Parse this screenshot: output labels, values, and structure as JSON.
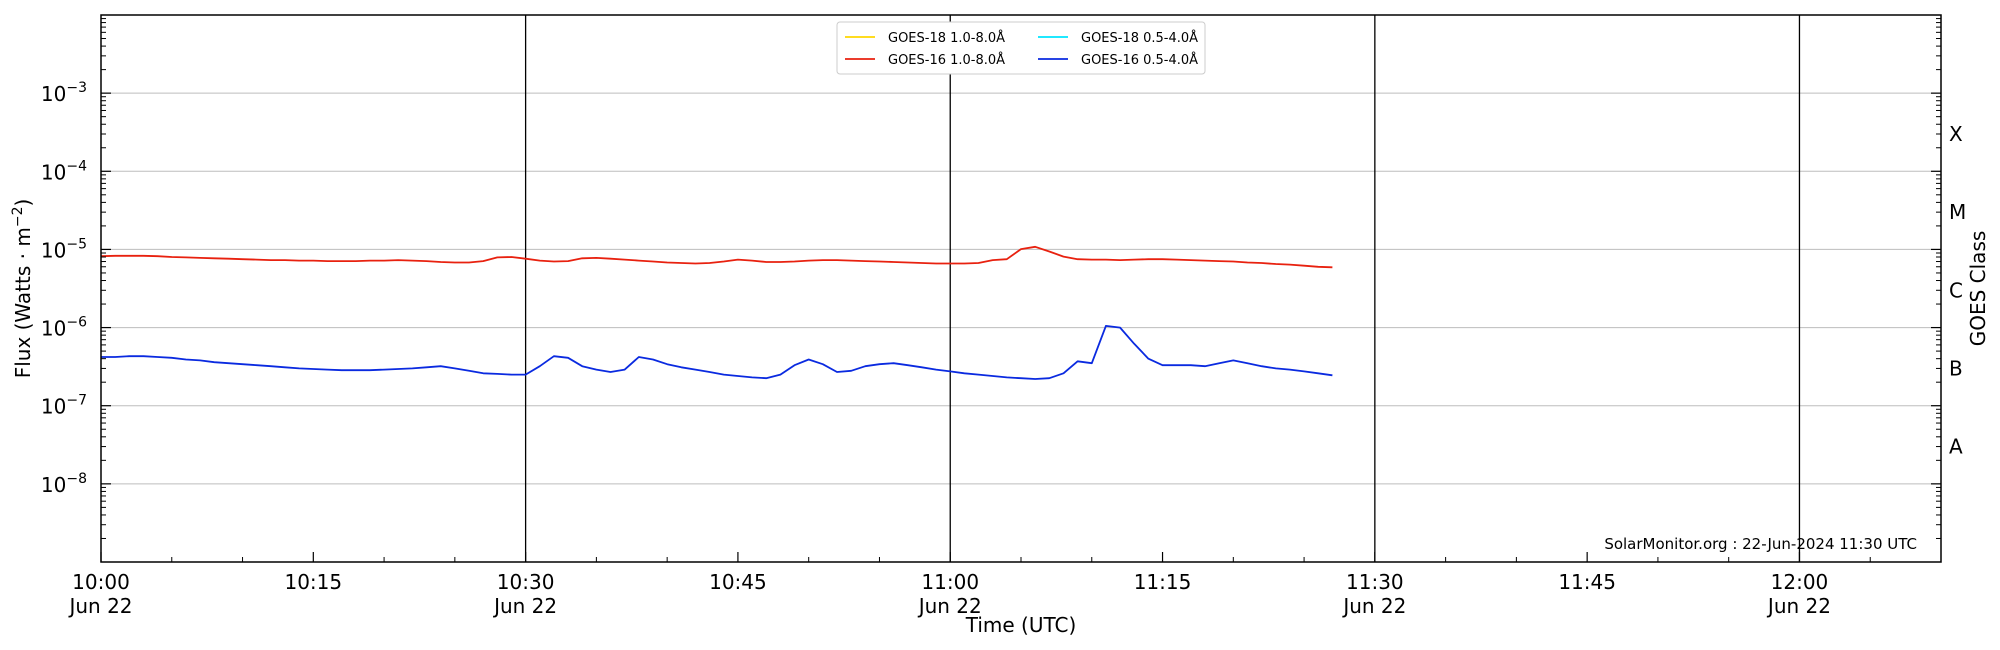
{
  "chart_data": {
    "type": "line",
    "title": "",
    "xlabel": "Time (UTC)",
    "ylabel": "Flux (Watts · m",
    "ylabel_superscript": "−2",
    "ylabel_suffix": ")",
    "right_ylabel": "GOES Class",
    "y_scale": "log",
    "ylim": [
      1e-09,
      0.01
    ],
    "xlim": [
      "10:00",
      "12:10"
    ],
    "grid": "horizontal",
    "legend_position": "top-center",
    "credit": "SolarMonitor.org : 22-Jun-2024 11:30 UTC",
    "y_ticks": [
      {
        "value": 1e-08,
        "base": "10",
        "exp": "−8"
      },
      {
        "value": 1e-07,
        "base": "10",
        "exp": "−7"
      },
      {
        "value": 1e-06,
        "base": "10",
        "exp": "−6"
      },
      {
        "value": 1e-05,
        "base": "10",
        "exp": "−5"
      },
      {
        "value": 0.0001,
        "base": "10",
        "exp": "−4"
      },
      {
        "value": 0.001,
        "base": "10",
        "exp": "−3"
      }
    ],
    "x_ticks": [
      {
        "minute": 0,
        "label": "10:00",
        "date": "Jun 22"
      },
      {
        "minute": 15,
        "label": "10:15",
        "date": ""
      },
      {
        "minute": 30,
        "label": "10:30",
        "date": "Jun 22"
      },
      {
        "minute": 45,
        "label": "10:45",
        "date": ""
      },
      {
        "minute": 60,
        "label": "11:00",
        "date": "Jun 22"
      },
      {
        "minute": 75,
        "label": "11:15",
        "date": ""
      },
      {
        "minute": 90,
        "label": "11:30",
        "date": "Jun 22"
      },
      {
        "minute": 105,
        "label": "11:45",
        "date": ""
      },
      {
        "minute": 120,
        "label": "12:00",
        "date": "Jun 22"
      }
    ],
    "vertical_markers": [
      30,
      60,
      90,
      120
    ],
    "goes_classes": [
      {
        "label": "A",
        "flux": 3e-08
      },
      {
        "label": "B",
        "flux": 3e-07
      },
      {
        "label": "C",
        "flux": 3e-06
      },
      {
        "label": "M",
        "flux": 3e-05
      },
      {
        "label": "X",
        "flux": 0.0003
      }
    ],
    "x_minutes": [
      0,
      1,
      2,
      3,
      4,
      5,
      6,
      7,
      8,
      9,
      10,
      11,
      12,
      13,
      14,
      15,
      16,
      17,
      18,
      19,
      20,
      21,
      22,
      23,
      24,
      25,
      26,
      27,
      28,
      29,
      30,
      31,
      32,
      33,
      34,
      35,
      36,
      37,
      38,
      39,
      40,
      41,
      42,
      43,
      44,
      45,
      46,
      47,
      48,
      49,
      50,
      51,
      52,
      53,
      54,
      55,
      56,
      57,
      58,
      59,
      60,
      61,
      62,
      63,
      64,
      65,
      66,
      67,
      68,
      69,
      70,
      71,
      72,
      73,
      74,
      75,
      76,
      77,
      78,
      79,
      80,
      81,
      82,
      83,
      84,
      85,
      86,
      87
    ],
    "series": [
      {
        "name": "GOES-18 1.0-8.0Å",
        "color": "#ffd700",
        "values": []
      },
      {
        "name": "GOES-18 0.5-4.0Å",
        "color": "#00e5ff",
        "values": []
      },
      {
        "name": "GOES-16 1.0-8.0Å",
        "color": "#e8210f",
        "values": [
          8.2e-06,
          8.3e-06,
          8.3e-06,
          8.3e-06,
          8.2e-06,
          8e-06,
          7.9e-06,
          7.8e-06,
          7.7e-06,
          7.6e-06,
          7.5e-06,
          7.4e-06,
          7.3e-06,
          7.3e-06,
          7.2e-06,
          7.2e-06,
          7.1e-06,
          7.1e-06,
          7.1e-06,
          7.2e-06,
          7.2e-06,
          7.3e-06,
          7.2e-06,
          7.1e-06,
          6.9e-06,
          6.8e-06,
          6.8e-06,
          7.1e-06,
          7.9e-06,
          8e-06,
          7.6e-06,
          7.2e-06,
          7e-06,
          7.1e-06,
          7.7e-06,
          7.8e-06,
          7.6e-06,
          7.4e-06,
          7.2e-06,
          7e-06,
          6.8e-06,
          6.7e-06,
          6.6e-06,
          6.7e-06,
          7e-06,
          7.4e-06,
          7.2e-06,
          6.9e-06,
          6.9e-06,
          7e-06,
          7.2e-06,
          7.3e-06,
          7.3e-06,
          7.2e-06,
          7.1e-06,
          7e-06,
          6.9e-06,
          6.8e-06,
          6.7e-06,
          6.6e-06,
          6.6e-06,
          6.6e-06,
          6.7e-06,
          7.3e-06,
          7.5e-06,
          1.01e-05,
          1.08e-05,
          9.4e-06,
          8.1e-06,
          7.5e-06,
          7.4e-06,
          7.4e-06,
          7.3e-06,
          7.4e-06,
          7.5e-06,
          7.5e-06,
          7.4e-06,
          7.3e-06,
          7.2e-06,
          7.1e-06,
          7e-06,
          6.8e-06,
          6.7e-06,
          6.5e-06,
          6.4e-06,
          6.2e-06,
          6e-06,
          5.9e-06
        ]
      },
      {
        "name": "GOES-16 0.5-4.0Å",
        "color": "#0a2ae0",
        "values": [
          4.2e-07,
          4.2e-07,
          4.3e-07,
          4.3e-07,
          4.2e-07,
          4.1e-07,
          3.9e-07,
          3.8e-07,
          3.6e-07,
          3.5e-07,
          3.4e-07,
          3.3e-07,
          3.2e-07,
          3.1e-07,
          3e-07,
          2.95e-07,
          2.9e-07,
          2.85e-07,
          2.85e-07,
          2.85e-07,
          2.9e-07,
          2.95e-07,
          3e-07,
          3.1e-07,
          3.2e-07,
          3e-07,
          2.8e-07,
          2.6e-07,
          2.55e-07,
          2.5e-07,
          2.5e-07,
          3.2e-07,
          4.3e-07,
          4.1e-07,
          3.2e-07,
          2.9e-07,
          2.7e-07,
          2.9e-07,
          4.2e-07,
          3.9e-07,
          3.4e-07,
          3.1e-07,
          2.9e-07,
          2.7e-07,
          2.5e-07,
          2.4e-07,
          2.3e-07,
          2.25e-07,
          2.5e-07,
          3.3e-07,
          3.9e-07,
          3.4e-07,
          2.7e-07,
          2.8e-07,
          3.2e-07,
          3.4e-07,
          3.5e-07,
          3.3e-07,
          3.1e-07,
          2.9e-07,
          2.75e-07,
          2.6e-07,
          2.5e-07,
          2.4e-07,
          2.3e-07,
          2.25e-07,
          2.2e-07,
          2.25e-07,
          2.6e-07,
          3.7e-07,
          3.5e-07,
          1.05e-06,
          1e-06,
          6.2e-07,
          4e-07,
          3.3e-07,
          3.3e-07,
          3.3e-07,
          3.2e-07,
          3.5e-07,
          3.8e-07,
          3.5e-07,
          3.2e-07,
          3e-07,
          2.9e-07,
          2.75e-07,
          2.6e-07,
          2.45e-07
        ]
      }
    ]
  }
}
